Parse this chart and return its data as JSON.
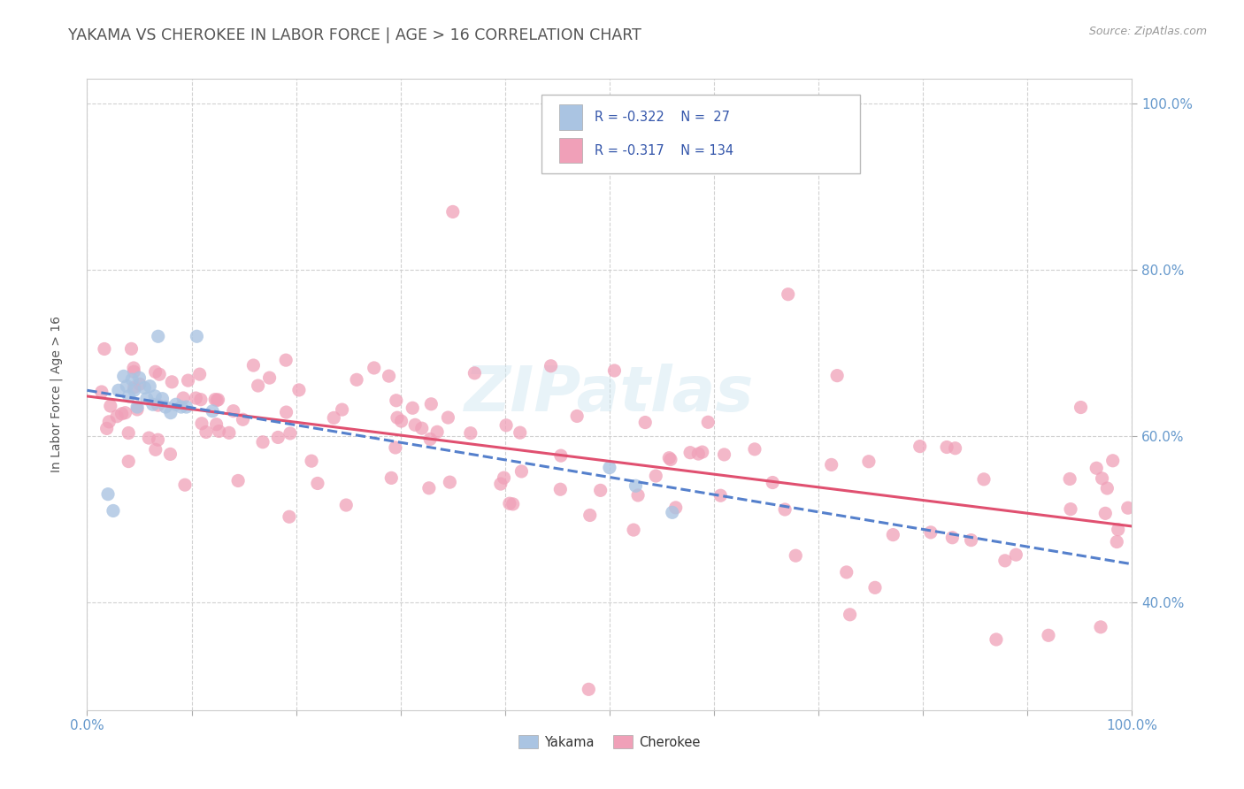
{
  "title": "YAKAMA VS CHEROKEE IN LABOR FORCE | AGE > 16 CORRELATION CHART",
  "source_text": "Source: ZipAtlas.com",
  "ylabel": "In Labor Force | Age > 16",
  "xlim": [
    0.0,
    1.0
  ],
  "ylim": [
    0.27,
    1.03
  ],
  "y_ticks": [
    0.4,
    0.6,
    0.8,
    1.0
  ],
  "y_tick_labels": [
    "40.0%",
    "60.0%",
    "80.0%",
    "100.0%"
  ],
  "x_ticks": [
    0.0,
    1.0
  ],
  "x_tick_labels": [
    "0.0%",
    "100.0%"
  ],
  "legend_r_yakama": "R = -0.322",
  "legend_n_yakama": "N =  27",
  "legend_r_cherokee": "R = -0.317",
  "legend_n_cherokee": "N = 134",
  "yakama_color": "#aac4e2",
  "cherokee_color": "#f0a0b8",
  "trend_yakama_color": "#5580cc",
  "trend_cherokee_color": "#e05070",
  "watermark": "ZIPatlas",
  "background_color": "#ffffff",
  "grid_color": "#cccccc",
  "title_color": "#555555",
  "axis_tick_color": "#6699cc",
  "legend_text_color": "#3355aa",
  "source_color": "#999999"
}
